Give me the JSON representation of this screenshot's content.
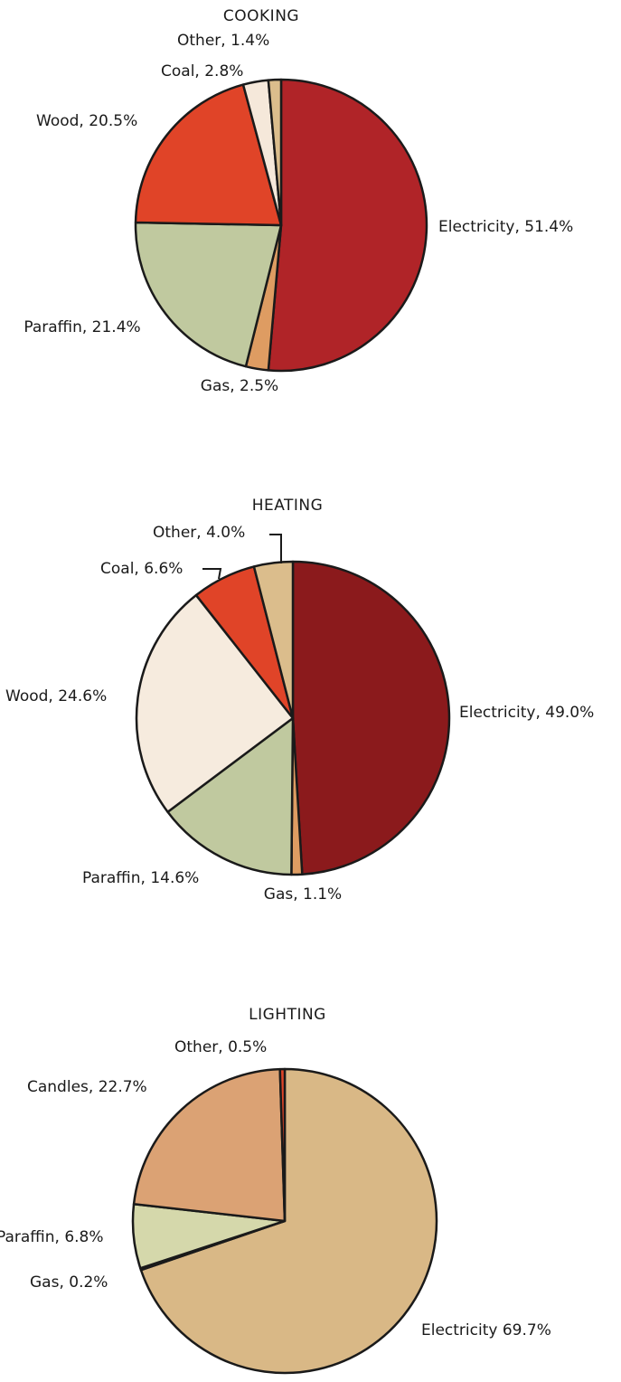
{
  "chart_data": [
    {
      "type": "pie",
      "title": "COOKING",
      "slices": [
        {
          "name": "Electricity",
          "value": 51.4,
          "label": "Electricity, 51.4%",
          "color": "#b02428"
        },
        {
          "name": "Gas",
          "value": 2.5,
          "label": "Gas, 2.5%",
          "color": "#de9c62"
        },
        {
          "name": "Paraffin",
          "value": 21.4,
          "label": "Paraffin, 21.4%",
          "color": "#c0c99f"
        },
        {
          "name": "Wood",
          "value": 20.5,
          "label": "Wood, 20.5%",
          "color": "#e04428"
        },
        {
          "name": "Coal",
          "value": 2.8,
          "label": "Coal, 2.8%",
          "color": "#f5e8da"
        },
        {
          "name": "Other",
          "value": 1.4,
          "label": "Other, 1.4%",
          "color": "#dbbd8c"
        }
      ]
    },
    {
      "type": "pie",
      "title": "HEATING",
      "slices": [
        {
          "name": "Electricity",
          "value": 49.0,
          "label": "Electricity, 49.0%",
          "color": "#8b1a1c"
        },
        {
          "name": "Gas",
          "value": 1.1,
          "label": "Gas, 1.1%",
          "color": "#de9c62"
        },
        {
          "name": "Paraffin",
          "value": 14.6,
          "label": "Paraffin, 14.6%",
          "color": "#c0c99f"
        },
        {
          "name": "Wood",
          "value": 24.6,
          "label": "Wood, 24.6%",
          "color": "#f6ebde"
        },
        {
          "name": "Coal",
          "value": 6.6,
          "label": "Coal, 6.6%",
          "color": "#e04428"
        },
        {
          "name": "Other",
          "value": 4.0,
          "label": "Other, 4.0%",
          "color": "#dbbd8c"
        }
      ]
    },
    {
      "type": "pie",
      "title": "LIGHTING",
      "slices": [
        {
          "name": "Electricity",
          "value": 69.7,
          "label": "Electricity 69.7%",
          "color": "#d9b886"
        },
        {
          "name": "Gas",
          "value": 0.2,
          "label": "Gas, 0.2%",
          "color": "#8b1a1c"
        },
        {
          "name": "Paraffin",
          "value": 6.8,
          "label": "Paraffin, 6.8%",
          "color": "#d5d8ab"
        },
        {
          "name": "Candles",
          "value": 22.7,
          "label": "Candles, 22.7%",
          "color": "#dba274"
        },
        {
          "name": "Other",
          "value": 0.5,
          "label": "Other, 0.5%",
          "color": "#e04428"
        }
      ]
    }
  ]
}
